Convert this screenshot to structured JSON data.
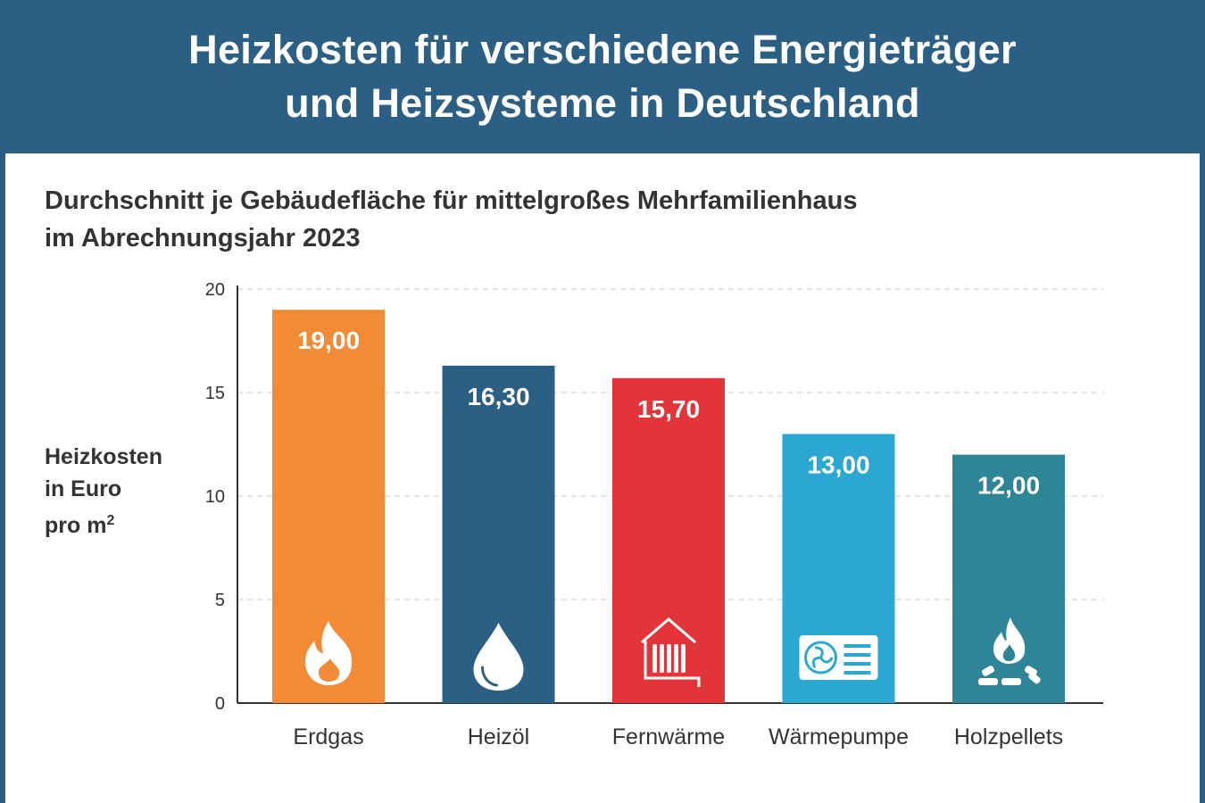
{
  "header": {
    "title_line1": "Heizkosten für verschiedene Energieträger",
    "title_line2": "und Heizsysteme in Deutschland"
  },
  "chart_data": {
    "type": "bar",
    "title": "Heizkosten für verschiedene Energieträger und Heizsysteme in Deutschland",
    "subtitle_line1": "Durchschnitt je Gebäudefläche für mittelgroßes Mehrfamilienhaus",
    "subtitle_line2": "im Abrechnungsjahr 2023",
    "ylabel_line1": "Heizkosten",
    "ylabel_line2": "in Euro",
    "ylabel_line3": "pro m",
    "ylabel_sup": "2",
    "categories": [
      "Erdgas",
      "Heizöl",
      "Fernwärme",
      "Wärmepumpe",
      "Holzpellets"
    ],
    "values": [
      19.0,
      16.3,
      15.7,
      13.0,
      12.0
    ],
    "value_labels": [
      "19,00",
      "16,30",
      "15,70",
      "13,00",
      "12,00"
    ],
    "colors": [
      "#f28a36",
      "#2b6084",
      "#e2353a",
      "#2aa8d2",
      "#2e8597"
    ],
    "icons": [
      "flame-icon",
      "oil-drop-icon",
      "radiator-icon",
      "heat-pump-icon",
      "pellet-fire-icon"
    ],
    "ylim": [
      0,
      20
    ],
    "yticks": [
      0,
      5,
      10,
      15,
      20
    ],
    "grid": true
  }
}
